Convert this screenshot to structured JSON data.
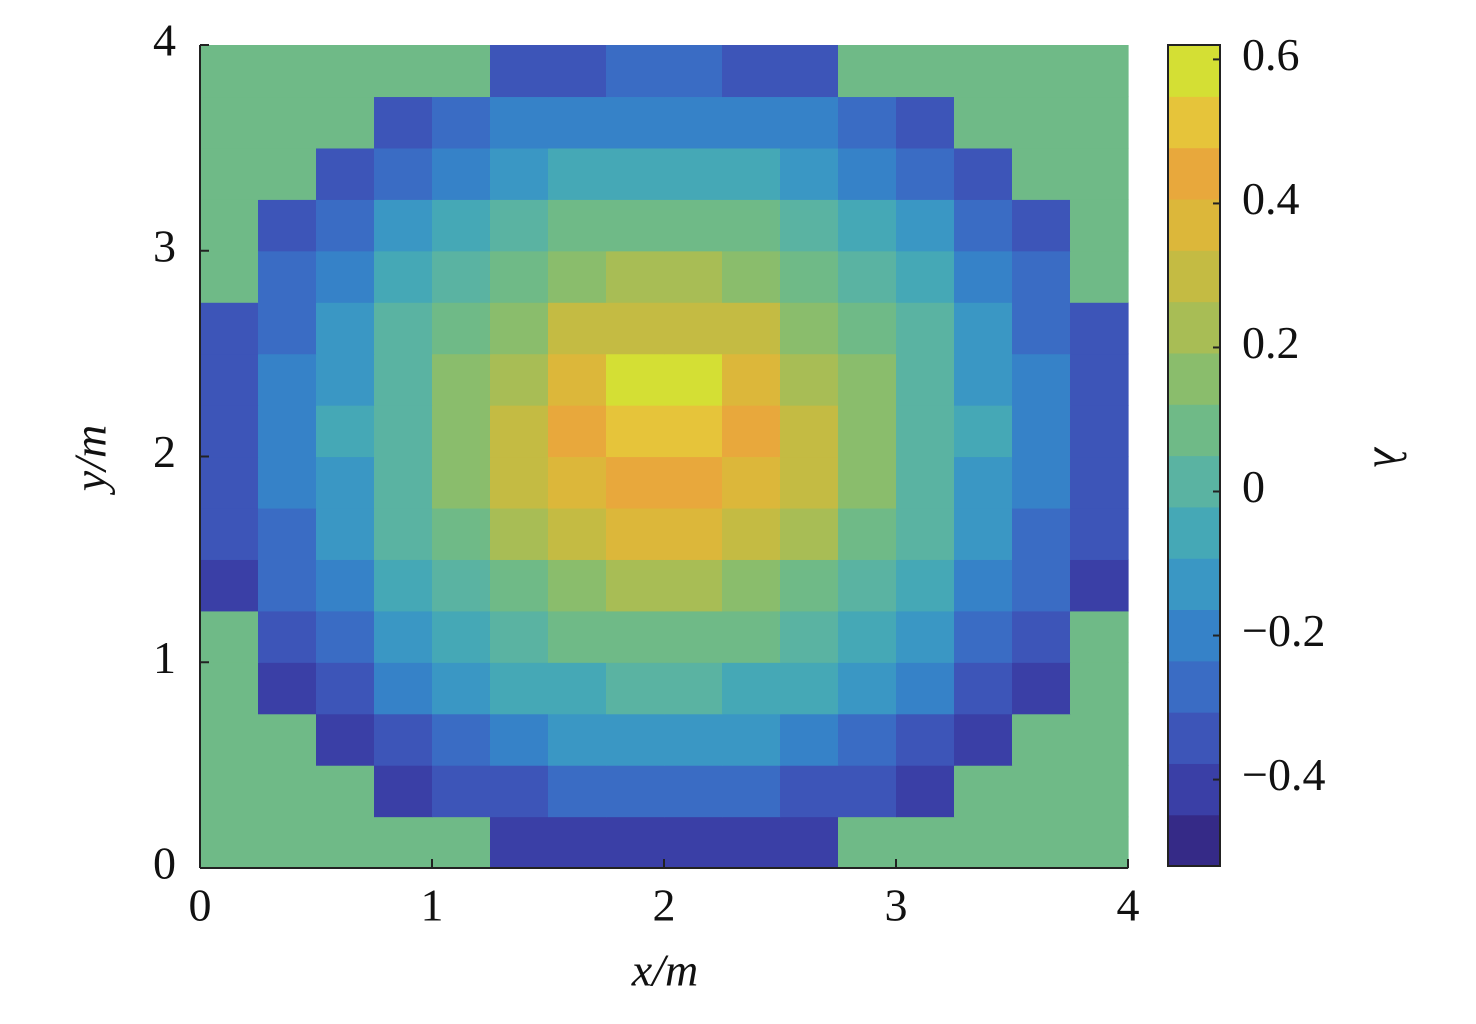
{
  "chart_data": {
    "type": "heatmap",
    "xlabel": "x/m",
    "ylabel": "y/m",
    "colorbar_label": "λ",
    "x": [
      0.125,
      0.375,
      0.625,
      0.875,
      1.125,
      1.375,
      1.625,
      1.875,
      2.125,
      2.375,
      2.625,
      2.875,
      3.125,
      3.375,
      3.625,
      3.875
    ],
    "y": [
      0.125,
      0.375,
      0.625,
      0.875,
      1.125,
      1.375,
      1.625,
      1.875,
      2.125,
      2.375,
      2.625,
      2.875,
      3.125,
      3.375,
      3.625,
      3.875
    ],
    "z": [
      [
        0.05,
        0.05,
        0.05,
        0.05,
        0.05,
        -0.44,
        -0.41,
        -0.39,
        -0.39,
        -0.41,
        -0.44,
        0.05,
        0.05,
        0.05,
        0.05,
        0.05
      ],
      [
        0.05,
        0.05,
        0.05,
        -0.43,
        -0.37,
        -0.32,
        -0.28,
        -0.27,
        -0.27,
        -0.28,
        -0.32,
        -0.37,
        -0.43,
        0.05,
        0.05,
        0.05
      ],
      [
        0.05,
        0.05,
        -0.41,
        -0.33,
        -0.26,
        -0.2,
        -0.16,
        -0.14,
        -0.14,
        -0.16,
        -0.2,
        -0.26,
        -0.33,
        -0.41,
        0.05,
        0.05
      ],
      [
        0.05,
        -0.42,
        -0.32,
        -0.23,
        -0.15,
        -0.09,
        -0.04,
        -0.02,
        -0.02,
        -0.04,
        -0.09,
        -0.15,
        -0.23,
        -0.32,
        -0.42,
        0.05
      ],
      [
        0.05,
        -0.35,
        -0.24,
        -0.14,
        -0.06,
        0.02,
        0.08,
        0.11,
        0.11,
        0.08,
        0.02,
        -0.06,
        -0.14,
        -0.24,
        -0.35,
        0.05
      ],
      [
        -0.41,
        -0.29,
        -0.18,
        -0.07,
        0.03,
        0.12,
        0.19,
        0.23,
        0.23,
        0.19,
        0.12,
        0.03,
        -0.07,
        -0.18,
        -0.29,
        -0.41
      ],
      [
        -0.37,
        -0.25,
        -0.13,
        -0.01,
        0.1,
        0.21,
        0.3,
        0.35,
        0.35,
        0.3,
        0.21,
        0.1,
        -0.01,
        -0.13,
        -0.25,
        -0.37
      ],
      [
        -0.34,
        -0.22,
        -0.1,
        0.03,
        0.15,
        0.27,
        0.38,
        0.47,
        0.47,
        0.38,
        0.27,
        0.15,
        0.03,
        -0.1,
        -0.22,
        -0.34
      ],
      [
        -0.34,
        -0.21,
        -0.09,
        0.04,
        0.16,
        0.29,
        0.41,
        0.54,
        0.54,
        0.41,
        0.29,
        0.16,
        0.04,
        -0.09,
        -0.21,
        -0.34
      ],
      [
        -0.35,
        -0.22,
        -0.1,
        0.02,
        0.14,
        0.26,
        0.37,
        0.6,
        0.56,
        0.37,
        0.26,
        0.14,
        0.02,
        -0.1,
        -0.22,
        -0.35
      ],
      [
        -0.37,
        -0.25,
        -0.14,
        -0.02,
        0.09,
        0.19,
        0.28,
        0.33,
        0.33,
        0.28,
        0.19,
        0.09,
        -0.02,
        -0.14,
        -0.25,
        -0.37
      ],
      [
        0.05,
        -0.3,
        -0.19,
        -0.08,
        0.02,
        0.1,
        0.17,
        0.21,
        0.21,
        0.17,
        0.1,
        0.02,
        -0.08,
        -0.19,
        -0.3,
        0.05
      ],
      [
        0.05,
        -0.36,
        -0.26,
        -0.16,
        -0.07,
        0,
        0.05,
        0.08,
        0.08,
        0.05,
        0,
        -0.07,
        -0.16,
        -0.26,
        -0.36,
        0.05
      ],
      [
        0.05,
        0.05,
        -0.34,
        -0.25,
        -0.17,
        -0.11,
        -0.06,
        -0.04,
        -0.04,
        -0.06,
        -0.11,
        -0.17,
        -0.25,
        -0.34,
        0.05,
        0.05
      ],
      [
        0.05,
        0.05,
        0.05,
        -0.35,
        -0.28,
        -0.22,
        -0.19,
        -0.17,
        -0.17,
        -0.19,
        -0.22,
        -0.28,
        -0.35,
        0.05,
        0.05,
        0.05
      ],
      [
        0.05,
        0.05,
        0.05,
        0.05,
        0.05,
        -0.34,
        -0.31,
        -0.29,
        -0.29,
        -0.31,
        -0.34,
        0.05,
        0.05,
        0.05,
        0.05,
        0.05
      ]
    ],
    "xlim": [
      0,
      4
    ],
    "ylim": [
      0,
      4
    ],
    "xticks": [
      0,
      1,
      2,
      3,
      4
    ],
    "yticks": [
      0,
      1,
      2,
      3,
      4
    ],
    "clim": [
      -0.52,
      0.62
    ],
    "cticks": [
      {
        "value": -0.4,
        "label": "−0.4"
      },
      {
        "value": -0.2,
        "label": "−0.2"
      },
      0,
      0.2,
      0.4,
      0.6
    ],
    "colormap": [
      "#352a87",
      "#3a3fa6",
      "#3d55b8",
      "#3a6cc4",
      "#3682c8",
      "#3a97c4",
      "#45a8b6",
      "#5ab3a2",
      "#6fba87",
      "#8abd6c",
      "#a8bd55",
      "#c4bb43",
      "#dcb73a",
      "#e8a83c",
      "#e6c43a",
      "#d4df34"
    ]
  }
}
